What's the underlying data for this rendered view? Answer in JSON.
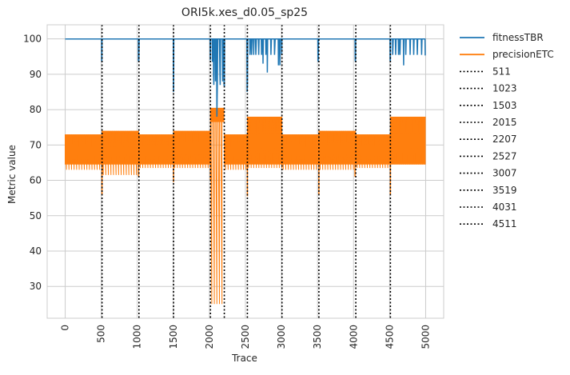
{
  "chart_data": {
    "type": "line",
    "title": "ORI5k.xes_d0.05_sp25",
    "xlabel": "Trace",
    "ylabel": "Metric value",
    "xlim": [
      -250,
      5250
    ],
    "ylim": [
      21,
      104
    ],
    "x_ticks": [
      0,
      500,
      1000,
      1500,
      2000,
      2500,
      3000,
      3500,
      4000,
      4500,
      5000
    ],
    "y_ticks": [
      30,
      40,
      50,
      60,
      70,
      80,
      90,
      100
    ],
    "grid": true,
    "legend_position": "outside-right",
    "series": [
      {
        "name": "fitnessTBR",
        "color": "#1f77b4",
        "baseline": 100,
        "points": [
          [
            0,
            100
          ],
          [
            505,
            100
          ],
          [
            506,
            94
          ],
          [
            509,
            93.5
          ],
          [
            512,
            100
          ],
          [
            1015,
            100
          ],
          [
            1016,
            94
          ],
          [
            1018,
            93.5
          ],
          [
            1022,
            94
          ],
          [
            1026,
            100
          ],
          [
            1500,
            100
          ],
          [
            1502,
            85
          ],
          [
            1504,
            86
          ],
          [
            1506,
            100
          ],
          [
            2010,
            100
          ],
          [
            2013,
            94
          ],
          [
            2016,
            100
          ],
          [
            2040,
            100
          ],
          [
            2042,
            93.5
          ],
          [
            2046,
            100
          ],
          [
            2055,
            100
          ],
          [
            2058,
            90
          ],
          [
            2062,
            87
          ],
          [
            2066,
            100
          ],
          [
            2080,
            100
          ],
          [
            2084,
            88
          ],
          [
            2088,
            100
          ],
          [
            2100,
            100
          ],
          [
            2104,
            78
          ],
          [
            2110,
            86
          ],
          [
            2116,
            100
          ],
          [
            2140,
            100
          ],
          [
            2146,
            90
          ],
          [
            2150,
            87
          ],
          [
            2155,
            100
          ],
          [
            2180,
            100
          ],
          [
            2184,
            88
          ],
          [
            2190,
            100
          ],
          [
            2200,
            100
          ],
          [
            2203,
            87
          ],
          [
            2208,
            86.5
          ],
          [
            2212,
            100
          ],
          [
            2520,
            100
          ],
          [
            2523,
            85
          ],
          [
            2528,
            87
          ],
          [
            2532,
            100
          ],
          [
            2560,
            100
          ],
          [
            2563,
            95.5
          ],
          [
            2570,
            100
          ],
          [
            2580,
            100
          ],
          [
            2584,
            95.5
          ],
          [
            2592,
            100
          ],
          [
            2610,
            100
          ],
          [
            2614,
            95.5
          ],
          [
            2620,
            100
          ],
          [
            2640,
            100
          ],
          [
            2644,
            95.5
          ],
          [
            2652,
            100
          ],
          [
            2680,
            100
          ],
          [
            2684,
            95.5
          ],
          [
            2690,
            100
          ],
          [
            2720,
            100
          ],
          [
            2724,
            95.5
          ],
          [
            2730,
            100
          ],
          [
            2740,
            100
          ],
          [
            2744,
            93
          ],
          [
            2748,
            100
          ],
          [
            2780,
            100
          ],
          [
            2784,
            95.5
          ],
          [
            2790,
            100
          ],
          [
            2800,
            100
          ],
          [
            2804,
            90.5
          ],
          [
            2808,
            100
          ],
          [
            2850,
            100
          ],
          [
            2854,
            95.5
          ],
          [
            2860,
            100
          ],
          [
            2900,
            100
          ],
          [
            2904,
            95.5
          ],
          [
            2912,
            100
          ],
          [
            2955,
            100
          ],
          [
            2958,
            92.5
          ],
          [
            2962,
            100
          ],
          [
            2975,
            100
          ],
          [
            2978,
            92.5
          ],
          [
            2982,
            100
          ],
          [
            3000,
            100
          ],
          [
            3003,
            95.5
          ],
          [
            3007,
            100
          ],
          [
            3505,
            100
          ],
          [
            3507,
            94
          ],
          [
            3510,
            93.5
          ],
          [
            3514,
            100
          ],
          [
            4020,
            100
          ],
          [
            4023,
            94
          ],
          [
            4026,
            93.5
          ],
          [
            4030,
            100
          ],
          [
            4505,
            100
          ],
          [
            4507,
            94
          ],
          [
            4510,
            93.5
          ],
          [
            4514,
            100
          ],
          [
            4540,
            100
          ],
          [
            4543,
            95.5
          ],
          [
            4550,
            100
          ],
          [
            4580,
            100
          ],
          [
            4584,
            95.5
          ],
          [
            4590,
            100
          ],
          [
            4620,
            100
          ],
          [
            4624,
            95.5
          ],
          [
            4630,
            100
          ],
          [
            4640,
            100
          ],
          [
            4644,
            95.5
          ],
          [
            4650,
            100
          ],
          [
            4690,
            100
          ],
          [
            4694,
            92.5
          ],
          [
            4698,
            100
          ],
          [
            4720,
            100
          ],
          [
            4724,
            95.5
          ],
          [
            4730,
            100
          ],
          [
            4780,
            100
          ],
          [
            4784,
            95.5
          ],
          [
            4790,
            100
          ],
          [
            4830,
            100
          ],
          [
            4834,
            95.5
          ],
          [
            4840,
            100
          ],
          [
            4880,
            100
          ],
          [
            4884,
            95.5
          ],
          [
            4890,
            100
          ],
          [
            4940,
            100
          ],
          [
            4944,
            95.5
          ],
          [
            4950,
            100
          ],
          [
            4990,
            100
          ],
          [
            4994,
            95.5
          ],
          [
            5000,
            95.5
          ]
        ]
      },
      {
        "name": "precisionETC",
        "color": "#ff7f0e",
        "segments": [
          {
            "x": [
              0,
              511
            ],
            "high": 73,
            "mid": 64.5,
            "low": 63
          },
          {
            "x": [
              511,
              1023
            ],
            "high": 74,
            "mid": 64.5,
            "low": 61.5
          },
          {
            "x": [
              1023,
              1503
            ],
            "high": 73,
            "mid": 64.5,
            "low": 63.5
          },
          {
            "x": [
              1503,
              2015
            ],
            "high": 74,
            "mid": 64.5,
            "low": 63.5
          },
          {
            "x": [
              2015,
              2207
            ],
            "high": 80.5,
            "mid": 76.5,
            "low": 25
          },
          {
            "x": [
              2207,
              2527
            ],
            "high": 73,
            "mid": 64.5,
            "low": 63
          },
          {
            "x": [
              2527,
              3007
            ],
            "high": 78,
            "mid": 64.5,
            "low": 63.5
          },
          {
            "x": [
              3007,
              3519
            ],
            "high": 73,
            "mid": 64.5,
            "low": 63
          },
          {
            "x": [
              3519,
              4031
            ],
            "high": 74,
            "mid": 64.5,
            "low": 63
          },
          {
            "x": [
              4031,
              4511
            ],
            "high": 73,
            "mid": 64.5,
            "low": 63.5
          },
          {
            "x": [
              4511,
              5000
            ],
            "high": 78,
            "mid": 64.5,
            "low": 64.5
          }
        ],
        "dips": [
          [
            511,
            56
          ],
          [
            1018,
            61
          ],
          [
            1503,
            59.5
          ],
          [
            2015,
            60
          ],
          [
            2527,
            55.5
          ],
          [
            3519,
            56
          ],
          [
            4020,
            61
          ],
          [
            4511,
            56
          ]
        ]
      }
    ],
    "vlines": [
      {
        "name": "511",
        "x": 511
      },
      {
        "name": "1023",
        "x": 1023
      },
      {
        "name": "1503",
        "x": 1503
      },
      {
        "name": "2015",
        "x": 2015
      },
      {
        "name": "2207",
        "x": 2207
      },
      {
        "name": "2527",
        "x": 2527
      },
      {
        "name": "3007",
        "x": 3007
      },
      {
        "name": "3519",
        "x": 3519
      },
      {
        "name": "4031",
        "x": 4031
      },
      {
        "name": "4511",
        "x": 4511
      }
    ]
  }
}
